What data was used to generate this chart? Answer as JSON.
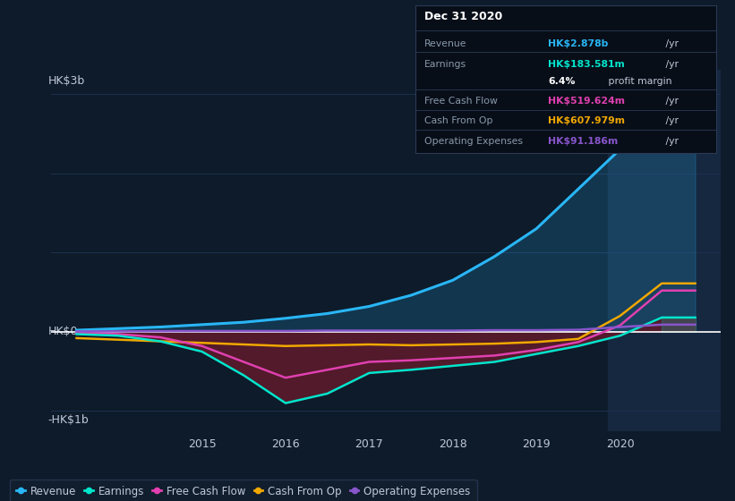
{
  "background_color": "#0d1b2a",
  "plot_bg_color": "#0d1b2a",
  "ylabel_top": "HK$3b",
  "ylabel_zero": "HK$0",
  "ylabel_neg": "-HK$1b",
  "x_years": [
    2013.5,
    2014.0,
    2014.5,
    2015.0,
    2015.5,
    2016.0,
    2016.5,
    2017.0,
    2017.5,
    2018.0,
    2018.5,
    2019.0,
    2019.5,
    2020.0,
    2020.5,
    2020.9
  ],
  "revenue": [
    0.02,
    0.04,
    0.06,
    0.09,
    0.12,
    0.17,
    0.23,
    0.32,
    0.46,
    0.65,
    0.95,
    1.3,
    1.8,
    2.3,
    2.878,
    2.878
  ],
  "earnings": [
    -0.03,
    -0.05,
    -0.12,
    -0.25,
    -0.55,
    -0.9,
    -0.78,
    -0.52,
    -0.48,
    -0.43,
    -0.38,
    -0.28,
    -0.18,
    -0.05,
    0.18,
    0.18
  ],
  "free_cash_flow": [
    -0.01,
    -0.03,
    -0.07,
    -0.18,
    -0.38,
    -0.58,
    -0.48,
    -0.38,
    -0.36,
    -0.33,
    -0.3,
    -0.23,
    -0.13,
    0.08,
    0.52,
    0.52
  ],
  "cash_from_op": [
    -0.08,
    -0.1,
    -0.12,
    -0.14,
    -0.16,
    -0.18,
    -0.17,
    -0.16,
    -0.17,
    -0.16,
    -0.15,
    -0.13,
    -0.09,
    0.2,
    0.61,
    0.61
  ],
  "operating_expenses": [
    0.005,
    0.005,
    0.008,
    0.01,
    0.01,
    0.01,
    0.015,
    0.015,
    0.015,
    0.015,
    0.02,
    0.02,
    0.025,
    0.06,
    0.09,
    0.09
  ],
  "revenue_color": "#29b6f6",
  "earnings_color": "#00e5cc",
  "free_cash_flow_color": "#e040b0",
  "cash_from_op_color": "#f0a800",
  "operating_expenses_color": "#8855cc",
  "highlight_x_start": 2019.85,
  "highlight_x_end": 2021.2,
  "ylim_min": -1.25,
  "ylim_max": 3.3,
  "xlim_min": 2013.2,
  "xlim_max": 2021.2,
  "xtick_years": [
    2015,
    2016,
    2017,
    2018,
    2019,
    2020
  ],
  "info_box": {
    "title": "Dec 31 2020",
    "revenue_label": "Revenue",
    "revenue_value": "HK$2.878b",
    "revenue_color": "#29b6f6",
    "earnings_label": "Earnings",
    "earnings_value": "HK$183.581m",
    "earnings_color": "#00e5cc",
    "fcf_label": "Free Cash Flow",
    "fcf_value": "HK$519.624m",
    "fcf_color": "#e040b0",
    "cashop_label": "Cash From Op",
    "cashop_value": "HK$607.979m",
    "cashop_color": "#f0a800",
    "opex_label": "Operating Expenses",
    "opex_value": "HK$91.186m",
    "opex_color": "#8855cc"
  },
  "legend_items": [
    {
      "label": "Revenue",
      "color": "#29b6f6"
    },
    {
      "label": "Earnings",
      "color": "#00e5cc"
    },
    {
      "label": "Free Cash Flow",
      "color": "#e040b0"
    },
    {
      "label": "Cash From Op",
      "color": "#f0a800"
    },
    {
      "label": "Operating Expenses",
      "color": "#8855cc"
    }
  ],
  "grid_color": "#1e3050",
  "zero_line_color": "#ffffff",
  "text_color": "#c0c8d8",
  "label_color": "#8899aa"
}
